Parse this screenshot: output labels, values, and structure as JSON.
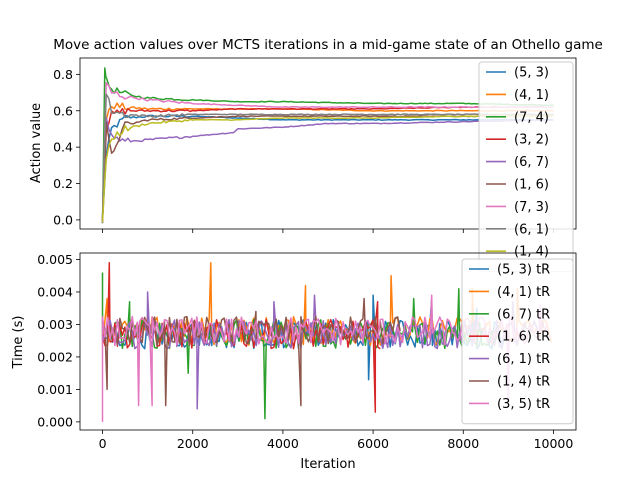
{
  "chart_data": [
    {
      "type": "line",
      "title": "Move action values over MCTS iterations in a mid-game state of an Othello game",
      "xlabel": "",
      "ylabel": "Action value",
      "xlim": [
        -500,
        10500
      ],
      "ylim": [
        -0.05,
        0.89
      ],
      "xticks": [
        0,
        2000,
        4000,
        6000,
        8000,
        10000
      ],
      "xtick_labels_shown": false,
      "yticks": [
        0.0,
        0.2,
        0.4,
        0.6,
        0.8
      ],
      "ytick_labels": [
        "0.0",
        "0.2",
        "0.4",
        "0.6",
        "0.8"
      ],
      "legend_position": "upper right",
      "series": [
        {
          "name": "(5, 3)",
          "color": "#1f77b4",
          "x": [
            0,
            80,
            200,
            500,
            1000,
            2000,
            3000,
            4000,
            6000,
            8000,
            10000
          ],
          "values": [
            0.0,
            0.35,
            0.5,
            0.56,
            0.57,
            0.57,
            0.56,
            0.55,
            0.55,
            0.55,
            0.55
          ]
        },
        {
          "name": "(4, 1)",
          "color": "#ff7f0e",
          "x": [
            0,
            80,
            200,
            500,
            1000,
            2000,
            3000,
            4000,
            6000,
            8000,
            10000
          ],
          "values": [
            0.0,
            0.55,
            0.63,
            0.62,
            0.61,
            0.61,
            0.61,
            0.61,
            0.6,
            0.6,
            0.6
          ]
        },
        {
          "name": "(7, 4)",
          "color": "#2ca02c",
          "x": [
            0,
            50,
            100,
            200,
            500,
            1000,
            2000,
            3000,
            4000,
            6000,
            8000,
            10000
          ],
          "values": [
            0.0,
            0.85,
            0.75,
            0.72,
            0.69,
            0.67,
            0.66,
            0.65,
            0.65,
            0.64,
            0.64,
            0.63
          ]
        },
        {
          "name": "(3, 2)",
          "color": "#d62728",
          "x": [
            0,
            80,
            200,
            500,
            1000,
            2000,
            3000,
            4000,
            6000,
            8000,
            10000
          ],
          "values": [
            0.0,
            0.5,
            0.58,
            0.6,
            0.6,
            0.6,
            0.61,
            0.61,
            0.61,
            0.62,
            0.62
          ]
        },
        {
          "name": "(6, 7)",
          "color": "#9467bd",
          "x": [
            0,
            80,
            200,
            500,
            1000,
            2000,
            2900,
            3000,
            4000,
            5000,
            6000,
            8000,
            10000
          ],
          "values": [
            0.0,
            0.55,
            0.46,
            0.43,
            0.44,
            0.46,
            0.48,
            0.5,
            0.51,
            0.53,
            0.53,
            0.54,
            0.55
          ]
        },
        {
          "name": "(1, 6)",
          "color": "#8c564b",
          "x": [
            0,
            80,
            200,
            300,
            500,
            1000,
            2000,
            3000,
            4000,
            6000,
            8000,
            10000
          ],
          "values": [
            0.0,
            0.52,
            0.35,
            0.42,
            0.52,
            0.55,
            0.56,
            0.57,
            0.57,
            0.57,
            0.57,
            0.57
          ]
        },
        {
          "name": "(7, 3)",
          "color": "#e377c2",
          "x": [
            0,
            80,
            200,
            500,
            1000,
            2000,
            3000,
            4000,
            6000,
            8000,
            10000
          ],
          "values": [
            0.0,
            0.75,
            0.7,
            0.68,
            0.66,
            0.64,
            0.63,
            0.62,
            0.62,
            0.62,
            0.62
          ]
        },
        {
          "name": "(6, 1)",
          "color": "#7f7f7f",
          "x": [
            0,
            80,
            200,
            500,
            1000,
            2000,
            3000,
            4000,
            6000,
            8000,
            10000
          ],
          "values": [
            0.0,
            0.7,
            0.6,
            0.58,
            0.57,
            0.58,
            0.58,
            0.58,
            0.58,
            0.58,
            0.58
          ]
        },
        {
          "name": "(1, 4)",
          "color": "#bcbd22",
          "x": [
            0,
            80,
            200,
            500,
            1000,
            2000,
            3000,
            4000,
            6000,
            8000,
            10000
          ],
          "values": [
            0.0,
            0.33,
            0.45,
            0.5,
            0.53,
            0.55,
            0.55,
            0.56,
            0.56,
            0.57,
            0.57
          ]
        }
      ]
    },
    {
      "type": "line",
      "title": "",
      "xlabel": "Iteration",
      "ylabel": "Time (s)",
      "xlim": [
        -500,
        10500
      ],
      "ylim": [
        -0.00025,
        0.0052
      ],
      "xticks": [
        0,
        2000,
        4000,
        6000,
        8000,
        10000
      ],
      "xtick_labels": [
        "0",
        "2000",
        "4000",
        "6000",
        "8000",
        "10000"
      ],
      "yticks": [
        0.0,
        0.001,
        0.002,
        0.003,
        0.004,
        0.005
      ],
      "ytick_labels": [
        "0.000",
        "0.001",
        "0.002",
        "0.003",
        "0.004",
        "0.005"
      ],
      "legend_position": "upper right",
      "series": [
        {
          "name": "(5, 3) tR",
          "color": "#1f77b4",
          "x_end": 9000,
          "base": 0.0027,
          "spikes": [
            [
              5900,
              0.0013
            ],
            [
              6000,
              0.0039
            ],
            [
              7300,
              0.0038
            ],
            [
              8300,
              0.0035
            ]
          ]
        },
        {
          "name": "(4, 1) tR",
          "color": "#ff7f0e",
          "x_end": 10000,
          "base": 0.0028,
          "spikes": [
            [
              100,
              0.0038
            ],
            [
              2400,
              0.0049
            ],
            [
              4500,
              0.0042
            ],
            [
              6400,
              0.0045
            ],
            [
              8200,
              0.0041
            ],
            [
              9200,
              0.0041
            ]
          ]
        },
        {
          "name": "(6, 7) tR",
          "color": "#2ca02c",
          "x_end": 8800,
          "base": 0.0027,
          "spikes": [
            [
              0,
              0.0046
            ],
            [
              600,
              0.0037
            ],
            [
              1900,
              0.0015
            ],
            [
              3600,
              0.0001
            ],
            [
              6900,
              0.0038
            ],
            [
              7900,
              0.0041
            ]
          ]
        },
        {
          "name": "(1, 6) tR",
          "color": "#d62728",
          "x_end": 6200,
          "base": 0.0027,
          "spikes": [
            [
              150,
              0.0049
            ],
            [
              6050,
              0.0003
            ],
            [
              6100,
              0.0037
            ]
          ]
        },
        {
          "name": "(6, 1) tR",
          "color": "#9467bd",
          "x_end": 9800,
          "base": 0.0027,
          "spikes": [
            [
              1000,
              0.004
            ],
            [
              2100,
              0.0004
            ],
            [
              3800,
              0.0037
            ],
            [
              4700,
              0.0039
            ],
            [
              9100,
              0.0037
            ]
          ]
        },
        {
          "name": "(1, 4) tR",
          "color": "#8c564b",
          "x_end": 6600,
          "base": 0.0028,
          "spikes": [
            [
              100,
              0.001
            ],
            [
              1400,
              0.0005
            ],
            [
              3400,
              0.0034
            ],
            [
              4400,
              0.0005
            ],
            [
              5800,
              0.0038
            ]
          ]
        },
        {
          "name": "(3, 5) tR",
          "color": "#e377c2",
          "x_end": 10000,
          "base": 0.0028,
          "spikes": [
            [
              0,
              0.0
            ],
            [
              800,
              0.0005
            ],
            [
              1100,
              0.0005
            ],
            [
              7300,
              0.0039
            ],
            [
              9000,
              0.0005
            ],
            [
              9700,
              0.0036
            ]
          ]
        }
      ]
    }
  ]
}
